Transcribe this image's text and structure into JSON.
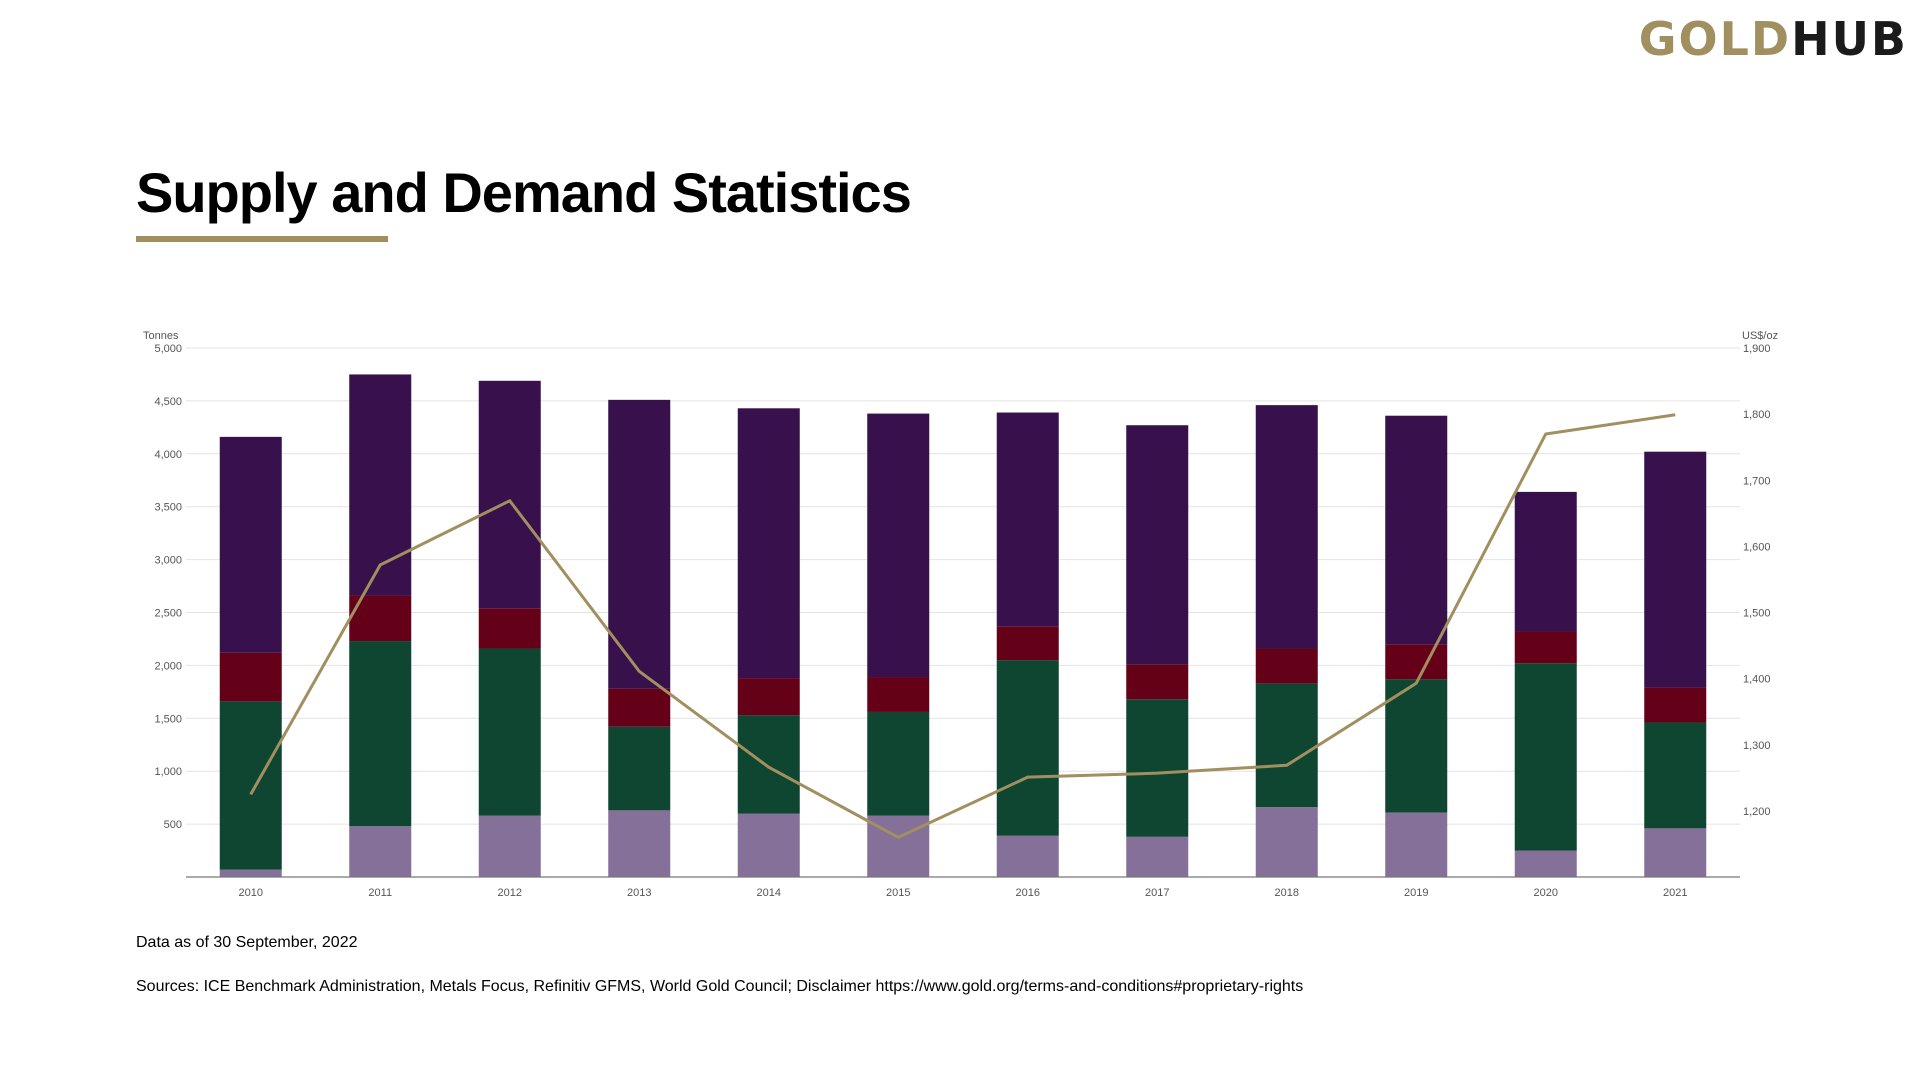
{
  "header": {
    "logo_gold": "GOLD",
    "logo_hub": "HUB"
  },
  "page": {
    "title": "Supply and Demand Statistics"
  },
  "footer": {
    "data_as_of": "Data as of 30 September, 2022",
    "sources": "Sources: ICE Benchmark Administration, Metals Focus, Refinitiv GFMS, World Gold Council; Disclaimer https://www.gold.org/terms-and-conditions#proprietary-rights"
  },
  "chart_data": {
    "type": "bar",
    "stacked": true,
    "left_axis_label": "Tonnes",
    "right_axis_label": "US$/oz",
    "categories": [
      "2010",
      "2011",
      "2012",
      "2013",
      "2014",
      "2015",
      "2016",
      "2017",
      "2018",
      "2019",
      "2020",
      "2021"
    ],
    "y_left": {
      "min": 0,
      "max": 5000,
      "ticks": [
        500,
        1000,
        1500,
        2000,
        2500,
        3000,
        3500,
        4000,
        4500,
        5000
      ]
    },
    "y_right": {
      "min": 1100,
      "max": 1900,
      "ticks": [
        1200,
        1300,
        1400,
        1500,
        1600,
        1700,
        1800,
        1900
      ]
    },
    "grid": true,
    "legend": "none",
    "series": [
      {
        "color": "#85709a",
        "values": [
          70,
          480,
          580,
          630,
          600,
          580,
          390,
          380,
          660,
          610,
          250,
          460
        ]
      },
      {
        "color": "#0e4631",
        "values": [
          1590,
          1750,
          1580,
          790,
          930,
          980,
          1660,
          1300,
          1170,
          1260,
          1770,
          1000
        ]
      },
      {
        "color": "#650019",
        "values": [
          460,
          430,
          380,
          360,
          350,
          330,
          320,
          330,
          330,
          330,
          300,
          330
        ]
      },
      {
        "color": "#37104c",
        "values": [
          2040,
          2090,
          2150,
          2730,
          2550,
          2490,
          2020,
          2260,
          2300,
          2160,
          1320,
          2230
        ]
      }
    ],
    "line": {
      "color": "#a18f5f",
      "axis": "right",
      "values": [
        1225,
        1572,
        1669,
        1411,
        1266,
        1160,
        1251,
        1257,
        1269,
        1393,
        1770,
        1799
      ]
    }
  }
}
